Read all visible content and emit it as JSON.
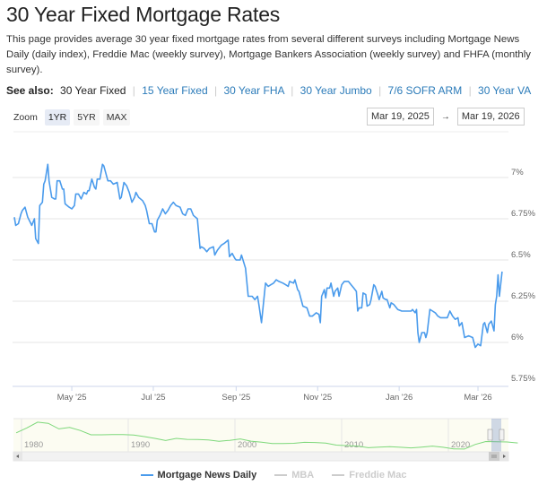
{
  "header": {
    "title": "30 Year Fixed Mortgage Rates",
    "description": "This page provides average 30 year fixed mortgage rates from several different surveys including Mortgage News Daily (daily index), Freddie Mac (weekly survey), Mortgage Bankers Association (weekly survey) and FHFA (monthly survey)."
  },
  "see_also": {
    "label": "See also:",
    "current": "30 Year Fixed",
    "links": [
      "15 Year Fixed",
      "30 Year FHA",
      "30 Year Jumbo",
      "7/6 SOFR ARM",
      "30 Year VA"
    ]
  },
  "zoom": {
    "label": "Zoom",
    "buttons": [
      "1YR",
      "5YR",
      "MAX"
    ],
    "active": "1YR"
  },
  "range": {
    "from": "Mar 19, 2025",
    "to": "Mar 19, 2026",
    "arrow": "→"
  },
  "colors": {
    "series": "#4a9bec",
    "navigator": "#7dd87a",
    "grid": "#e6e6e6",
    "link": "#2b7bb9"
  },
  "chart_data": {
    "type": "line",
    "ylim": [
      5.75,
      7.25
    ],
    "y_ticks": [
      "5.75%",
      "6%",
      "6.25%",
      "6.5%",
      "6.75%",
      "7%"
    ],
    "y_tick_values": [
      5.75,
      6,
      6.25,
      6.5,
      6.75,
      7
    ],
    "x_ticks": [
      "May '25",
      "Jul '25",
      "Sep '25",
      "Nov '25",
      "Jan '26",
      "Mar '26"
    ],
    "x_tick_dates": [
      "2025-05-01",
      "2025-07-01",
      "2025-09-01",
      "2025-11-01",
      "2026-01-01",
      "2026-03-01"
    ],
    "xlim": [
      "2025-03-19",
      "2026-03-19"
    ],
    "grid": true,
    "legend_position": "bottom",
    "series": [
      {
        "name": "Mortgage News Daily",
        "visible": true,
        "points": [
          [
            "2025-03-19",
            6.76
          ],
          [
            "2025-03-20",
            6.71
          ],
          [
            "2025-03-22",
            6.72
          ],
          [
            "2025-03-24",
            6.78
          ],
          [
            "2025-03-25",
            6.8
          ],
          [
            "2025-03-27",
            6.82
          ],
          [
            "2025-03-29",
            6.76
          ],
          [
            "2025-04-01",
            6.71
          ],
          [
            "2025-04-03",
            6.75
          ],
          [
            "2025-04-04",
            6.63
          ],
          [
            "2025-04-06",
            6.6
          ],
          [
            "2025-04-07",
            6.83
          ],
          [
            "2025-04-09",
            6.85
          ],
          [
            "2025-04-10",
            6.96
          ],
          [
            "2025-04-11",
            6.98
          ],
          [
            "2025-04-13",
            7.08
          ],
          [
            "2025-04-14",
            6.98
          ],
          [
            "2025-04-16",
            6.88
          ],
          [
            "2025-04-18",
            6.87
          ],
          [
            "2025-04-19",
            6.87
          ],
          [
            "2025-04-20",
            6.98
          ],
          [
            "2025-04-22",
            6.98
          ],
          [
            "2025-04-24",
            6.93
          ],
          [
            "2025-04-25",
            6.93
          ],
          [
            "2025-04-26",
            6.84
          ],
          [
            "2025-04-29",
            6.82
          ],
          [
            "2025-05-01",
            6.81
          ],
          [
            "2025-05-03",
            6.83
          ],
          [
            "2025-05-04",
            6.9
          ],
          [
            "2025-05-06",
            6.9
          ],
          [
            "2025-05-08",
            6.87
          ],
          [
            "2025-05-10",
            6.91
          ],
          [
            "2025-05-12",
            6.9
          ],
          [
            "2025-05-13",
            6.92
          ],
          [
            "2025-05-14",
            6.92
          ],
          [
            "2025-05-16",
            6.99
          ],
          [
            "2025-05-18",
            6.94
          ],
          [
            "2025-05-19",
            6.93
          ],
          [
            "2025-05-20",
            6.99
          ],
          [
            "2025-05-22",
            6.99
          ],
          [
            "2025-05-24",
            7.08
          ],
          [
            "2025-05-25",
            7.07
          ],
          [
            "2025-05-28",
            6.98
          ],
          [
            "2025-05-30",
            6.98
          ],
          [
            "2025-06-01",
            6.96
          ],
          [
            "2025-06-04",
            6.97
          ],
          [
            "2025-06-06",
            6.87
          ],
          [
            "2025-06-07",
            6.88
          ],
          [
            "2025-06-09",
            6.97
          ],
          [
            "2025-06-11",
            6.95
          ],
          [
            "2025-06-13",
            6.91
          ],
          [
            "2025-06-15",
            6.85
          ],
          [
            "2025-06-17",
            6.88
          ],
          [
            "2025-06-18",
            6.91
          ],
          [
            "2025-06-20",
            6.88
          ],
          [
            "2025-06-23",
            6.86
          ],
          [
            "2025-06-25",
            6.83
          ],
          [
            "2025-06-26",
            6.8
          ],
          [
            "2025-06-28",
            6.72
          ],
          [
            "2025-06-30",
            6.72
          ],
          [
            "2025-07-02",
            6.67
          ],
          [
            "2025-07-03",
            6.67
          ],
          [
            "2025-07-04",
            6.74
          ],
          [
            "2025-07-06",
            6.77
          ],
          [
            "2025-07-08",
            6.81
          ],
          [
            "2025-07-10",
            6.78
          ],
          [
            "2025-07-12",
            6.8
          ],
          [
            "2025-07-14",
            6.83
          ],
          [
            "2025-07-16",
            6.85
          ],
          [
            "2025-07-18",
            6.83
          ],
          [
            "2025-07-21",
            6.82
          ],
          [
            "2025-07-23",
            6.78
          ],
          [
            "2025-07-25",
            6.77
          ],
          [
            "2025-07-27",
            6.81
          ],
          [
            "2025-07-29",
            6.81
          ],
          [
            "2025-07-31",
            6.77
          ],
          [
            "2025-08-03",
            6.75
          ],
          [
            "2025-08-05",
            6.57
          ],
          [
            "2025-08-06",
            6.58
          ],
          [
            "2025-08-08",
            6.57
          ],
          [
            "2025-08-10",
            6.55
          ],
          [
            "2025-08-12",
            6.57
          ],
          [
            "2025-08-15",
            6.58
          ],
          [
            "2025-08-16",
            6.53
          ],
          [
            "2025-08-18",
            6.56
          ],
          [
            "2025-08-21",
            6.59
          ],
          [
            "2025-08-23",
            6.6
          ],
          [
            "2025-08-26",
            6.62
          ],
          [
            "2025-08-27",
            6.52
          ],
          [
            "2025-08-29",
            6.54
          ],
          [
            "2025-08-31",
            6.51
          ],
          [
            "2025-09-01",
            6.5
          ],
          [
            "2025-09-04",
            6.5
          ],
          [
            "2025-09-05",
            6.53
          ],
          [
            "2025-09-08",
            6.45
          ],
          [
            "2025-09-10",
            6.28
          ],
          [
            "2025-09-11",
            6.28
          ],
          [
            "2025-09-13",
            6.28
          ],
          [
            "2025-09-15",
            6.26
          ],
          [
            "2025-09-17",
            6.28
          ],
          [
            "2025-09-18",
            6.23
          ],
          [
            "2025-09-20",
            6.12
          ],
          [
            "2025-09-23",
            6.36
          ],
          [
            "2025-09-25",
            6.34
          ],
          [
            "2025-09-27",
            6.35
          ],
          [
            "2025-09-29",
            6.36
          ],
          [
            "2025-10-01",
            6.38
          ],
          [
            "2025-10-03",
            6.37
          ],
          [
            "2025-10-06",
            6.36
          ],
          [
            "2025-10-08",
            6.35
          ],
          [
            "2025-10-10",
            6.34
          ],
          [
            "2025-10-11",
            6.37
          ],
          [
            "2025-10-14",
            6.36
          ],
          [
            "2025-10-15",
            6.38
          ],
          [
            "2025-10-17",
            6.32
          ],
          [
            "2025-10-18",
            6.31
          ],
          [
            "2025-10-21",
            6.22
          ],
          [
            "2025-10-24",
            6.21
          ],
          [
            "2025-10-26",
            6.16
          ],
          [
            "2025-10-28",
            6.16
          ],
          [
            "2025-10-31",
            6.18
          ],
          [
            "2025-11-02",
            6.17
          ],
          [
            "2025-11-03",
            6.12
          ],
          [
            "2025-11-04",
            6.28
          ],
          [
            "2025-11-06",
            6.32
          ],
          [
            "2025-11-07",
            6.27
          ],
          [
            "2025-11-08",
            6.33
          ],
          [
            "2025-11-10",
            6.33
          ],
          [
            "2025-11-11",
            6.36
          ],
          [
            "2025-11-13",
            6.28
          ],
          [
            "2025-11-14",
            6.31
          ],
          [
            "2025-11-16",
            6.33
          ],
          [
            "2025-11-17",
            6.28
          ],
          [
            "2025-11-19",
            6.35
          ],
          [
            "2025-11-21",
            6.37
          ],
          [
            "2025-11-24",
            6.37
          ],
          [
            "2025-11-26",
            6.35
          ],
          [
            "2025-11-28",
            6.33
          ],
          [
            "2025-11-30",
            6.31
          ],
          [
            "2025-12-01",
            6.19
          ],
          [
            "2025-12-02",
            6.21
          ],
          [
            "2025-12-04",
            6.21
          ],
          [
            "2025-12-05",
            6.3
          ],
          [
            "2025-12-07",
            6.29
          ],
          [
            "2025-12-08",
            6.22
          ],
          [
            "2025-12-10",
            6.23
          ],
          [
            "2025-12-11",
            6.26
          ],
          [
            "2025-12-13",
            6.35
          ],
          [
            "2025-12-14",
            6.34
          ],
          [
            "2025-12-16",
            6.29
          ],
          [
            "2025-12-17",
            6.26
          ],
          [
            "2025-12-19",
            6.31
          ],
          [
            "2025-12-20",
            6.27
          ],
          [
            "2025-12-22",
            6.26
          ],
          [
            "2025-12-23",
            6.26
          ],
          [
            "2025-12-25",
            6.21
          ],
          [
            "2025-12-26",
            6.24
          ],
          [
            "2025-12-28",
            6.23
          ],
          [
            "2025-12-31",
            6.2
          ],
          [
            "2026-01-03",
            6.19
          ],
          [
            "2026-01-07",
            6.19
          ],
          [
            "2026-01-10",
            6.19
          ],
          [
            "2026-01-11",
            6.2
          ],
          [
            "2026-01-13",
            6.18
          ],
          [
            "2026-01-14",
            6.2
          ],
          [
            "2026-01-15",
            6.06
          ],
          [
            "2026-01-16",
            6.0
          ],
          [
            "2026-01-18",
            6.06
          ],
          [
            "2026-01-20",
            6.06
          ],
          [
            "2026-01-21",
            6.03
          ],
          [
            "2026-01-22",
            6.06
          ],
          [
            "2026-01-24",
            6.2
          ],
          [
            "2026-01-26",
            6.19
          ],
          [
            "2026-01-28",
            6.18
          ],
          [
            "2026-01-30",
            6.16
          ],
          [
            "2026-02-01",
            6.15
          ],
          [
            "2026-02-06",
            6.15
          ],
          [
            "2026-02-08",
            6.19
          ],
          [
            "2026-02-10",
            6.16
          ],
          [
            "2026-02-12",
            6.14
          ],
          [
            "2026-02-14",
            6.15
          ],
          [
            "2026-02-15",
            6.1
          ],
          [
            "2026-02-17",
            6.12
          ],
          [
            "2026-02-19",
            6.03
          ],
          [
            "2026-02-22",
            6.04
          ],
          [
            "2026-02-25",
            6.03
          ],
          [
            "2026-02-27",
            5.97
          ],
          [
            "2026-03-01",
            5.99
          ],
          [
            "2026-03-03",
            5.98
          ],
          [
            "2026-03-05",
            6.11
          ],
          [
            "2026-03-06",
            6.12
          ],
          [
            "2026-03-08",
            6.06
          ],
          [
            "2026-03-09",
            6.11
          ],
          [
            "2026-03-11",
            6.13
          ],
          [
            "2026-03-13",
            6.07
          ],
          [
            "2026-03-14",
            6.23
          ],
          [
            "2026-03-15",
            6.28
          ],
          [
            "2026-03-16",
            6.41
          ],
          [
            "2026-03-17",
            6.28
          ],
          [
            "2026-03-19",
            6.43
          ]
        ]
      },
      {
        "name": "MBA",
        "visible": false
      },
      {
        "name": "Freddie Mac",
        "visible": false
      }
    ]
  },
  "navigator": {
    "x_ticks": [
      "1980",
      "1990",
      "2000",
      "2010",
      "2020"
    ],
    "years": [
      1979,
      1980,
      1981,
      1982,
      1983,
      1984,
      1985,
      1986,
      1987,
      1988,
      1989,
      1990,
      1991,
      1992,
      1993,
      1994,
      1995,
      1996,
      1997,
      1998,
      1999,
      2000,
      2001,
      2002,
      2003,
      2004,
      2005,
      2006,
      2007,
      2008,
      2009,
      2010,
      2011,
      2012,
      2013,
      2014,
      2015,
      2016,
      2017,
      2018,
      2019,
      2020,
      2021,
      2022,
      2023,
      2024,
      2025,
      2026
    ],
    "values": [
      11.2,
      13.7,
      16.6,
      16.0,
      13.2,
      13.9,
      12.4,
      10.2,
      10.2,
      10.3,
      10.3,
      10.1,
      9.3,
      8.4,
      7.3,
      8.4,
      7.9,
      7.8,
      7.6,
      6.9,
      7.4,
      8.1,
      7.0,
      6.5,
      5.8,
      5.8,
      5.9,
      6.4,
      6.3,
      6.0,
      5.0,
      4.7,
      4.5,
      3.7,
      4.0,
      4.2,
      3.9,
      3.6,
      4.0,
      4.5,
      3.9,
      3.1,
      3.0,
      5.3,
      6.8,
      6.7,
      6.6,
      6.1
    ]
  }
}
